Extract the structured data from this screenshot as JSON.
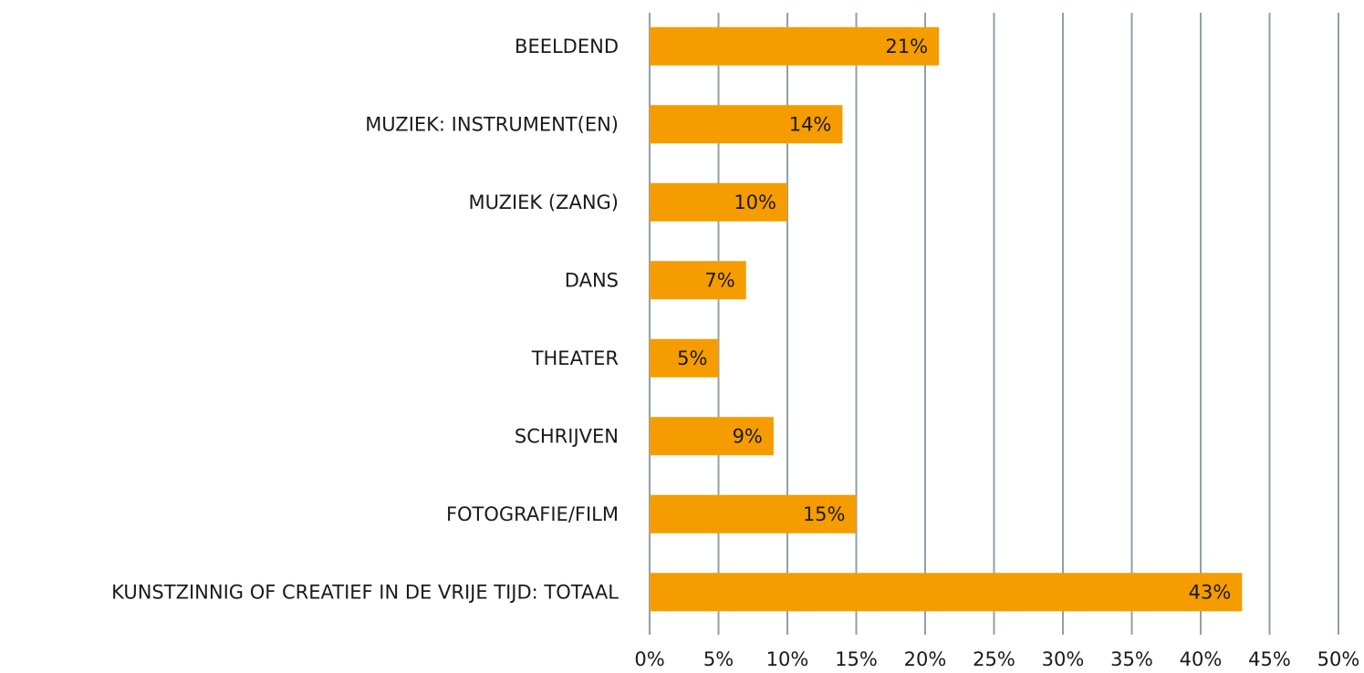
{
  "chart_data": {
    "type": "hbar",
    "categories": [
      "BEELDEND",
      "MUZIEK: INSTRUMENT(EN)",
      "MUZIEK (ZANG)",
      "DANS",
      "THEATER",
      "SCHRIJVEN",
      "FOTOGRAFIE/FILM",
      "KUNSTZINNIG OF CREATIEF IN DE VRIJE TIJD: TOTAAL"
    ],
    "values": [
      21,
      14,
      10,
      7,
      5,
      9,
      15,
      43
    ],
    "value_labels": [
      "21%",
      "14%",
      "10%",
      "7%",
      "5%",
      "9%",
      "15%",
      "43%"
    ],
    "color": "#f59c00",
    "xlim": [
      0,
      50
    ],
    "xticks": [
      {
        "value": 0,
        "label": "0%"
      },
      {
        "value": 5,
        "label": "5%"
      },
      {
        "value": 10,
        "label": "10%"
      },
      {
        "value": 15,
        "label": "15%"
      },
      {
        "value": 20,
        "label": "20%"
      },
      {
        "value": 25,
        "label": "25%"
      },
      {
        "value": 30,
        "label": "30%"
      },
      {
        "value": 35,
        "label": "35%"
      },
      {
        "value": 40,
        "label": "40%"
      },
      {
        "value": 45,
        "label": "45%"
      },
      {
        "value": 50,
        "label": "50%"
      }
    ],
    "grid": true
  }
}
